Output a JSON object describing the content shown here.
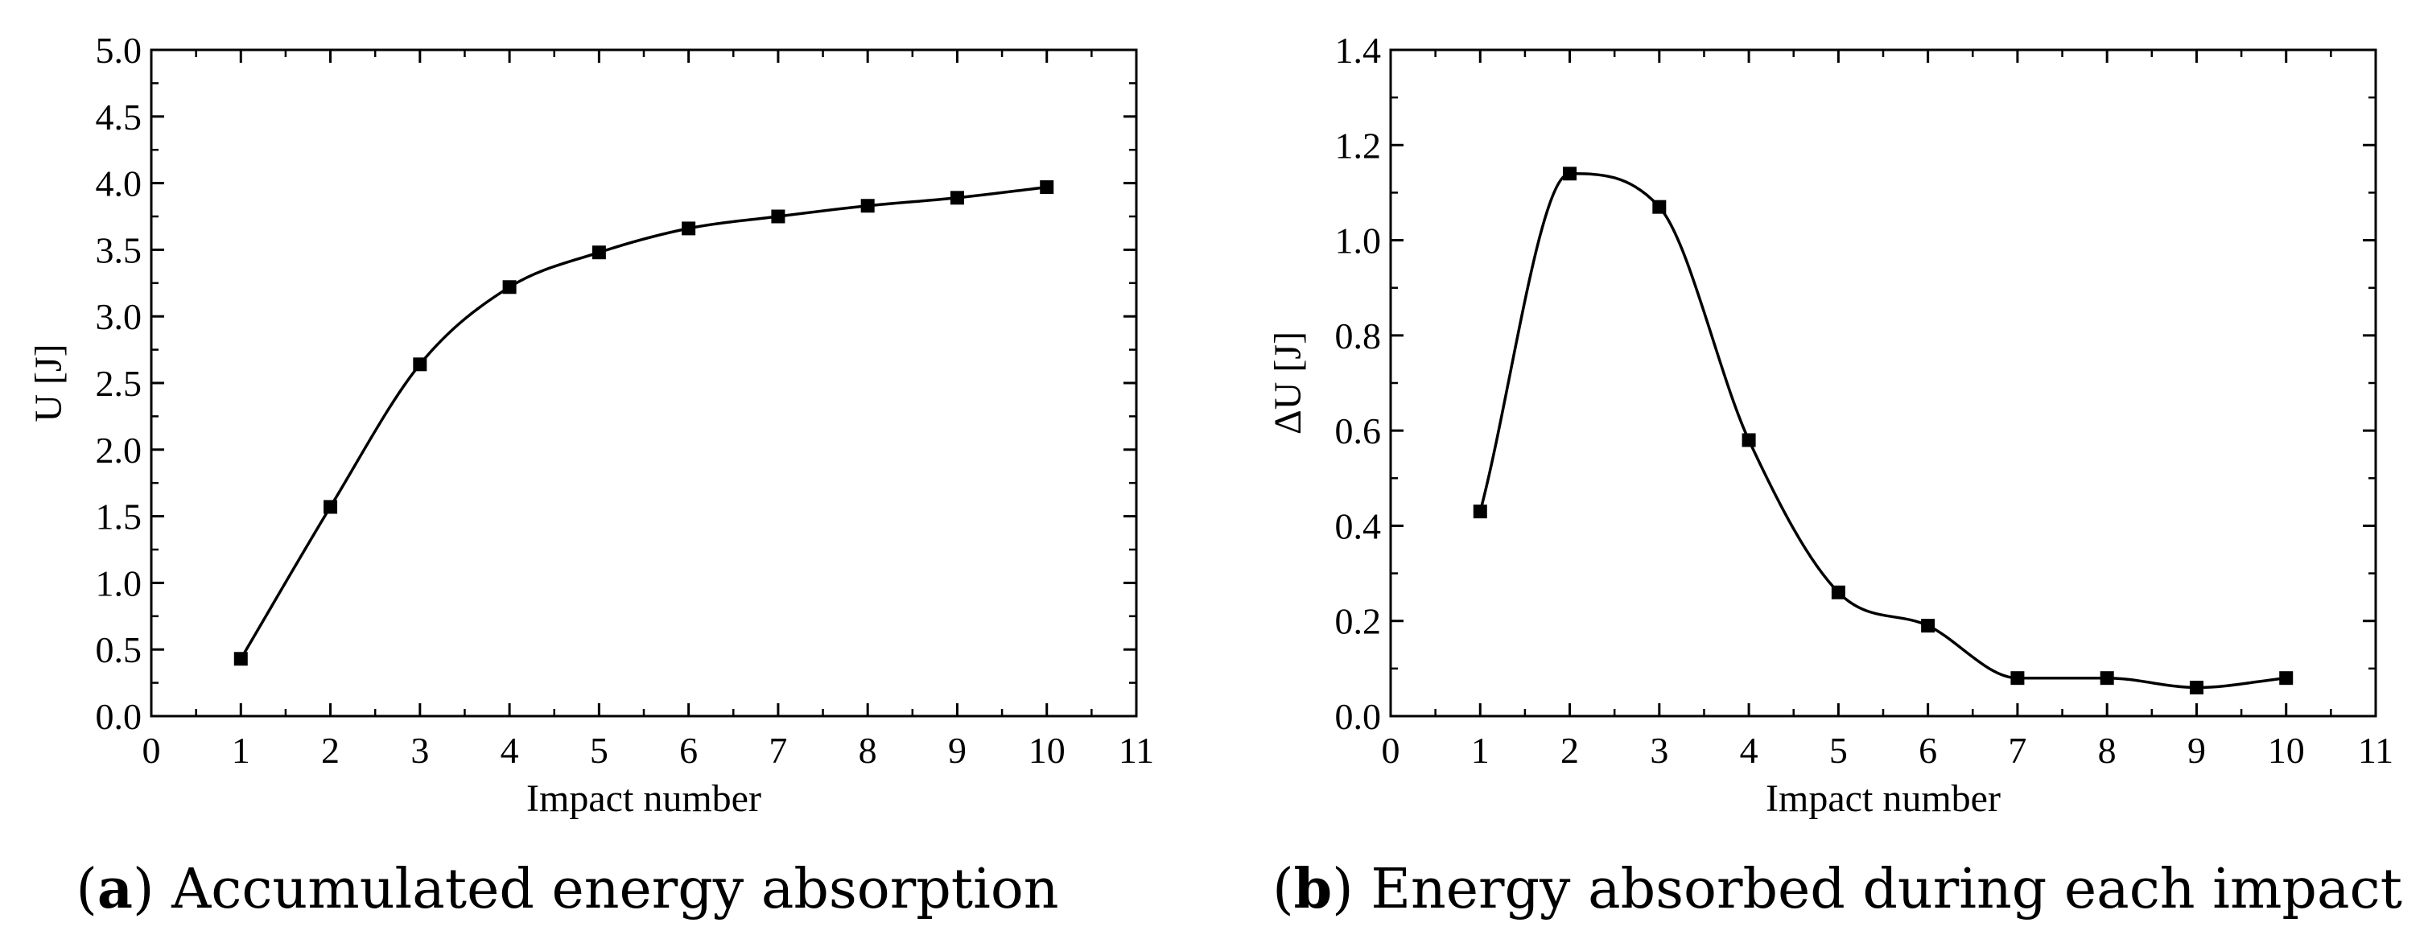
{
  "chart_data": [
    {
      "type": "line",
      "subplot_label": "a",
      "caption": "Accumulated energy absorption",
      "xlabel": "Impact number",
      "ylabel": "U [J]",
      "xlim": [
        0,
        11
      ],
      "ylim": [
        0,
        5.0
      ],
      "xticks": [
        "0",
        "1",
        "2",
        "3",
        "4",
        "5",
        "6",
        "7",
        "8",
        "9",
        "10",
        "11"
      ],
      "yticks": [
        "0.0",
        "0.5",
        "1.0",
        "1.5",
        "2.0",
        "2.5",
        "3.0",
        "3.5",
        "4.0",
        "4.5",
        "5.0"
      ],
      "grid": false,
      "marker": "square",
      "smooth": true,
      "series": [
        {
          "name": "U",
          "x": [
            1,
            2,
            3,
            4,
            5,
            6,
            7,
            8,
            9,
            10
          ],
          "values": [
            0.43,
            1.57,
            2.64,
            3.22,
            3.48,
            3.66,
            3.75,
            3.83,
            3.89,
            3.97
          ]
        }
      ]
    },
    {
      "type": "line",
      "subplot_label": "b",
      "caption": "Energy absorbed during each impact",
      "xlabel": "Impact number",
      "ylabel": "ΔU [J]",
      "xlim": [
        0,
        11
      ],
      "ylim": [
        0,
        1.4
      ],
      "xticks": [
        "0",
        "1",
        "2",
        "3",
        "4",
        "5",
        "6",
        "7",
        "8",
        "9",
        "10",
        "11"
      ],
      "yticks": [
        "0.0",
        "0.2",
        "0.4",
        "0.6",
        "0.8",
        "1.0",
        "1.2",
        "1.4"
      ],
      "grid": false,
      "marker": "square",
      "smooth": true,
      "series": [
        {
          "name": "ΔU",
          "x": [
            1,
            2,
            3,
            4,
            5,
            6,
            7,
            8,
            9,
            10
          ],
          "values": [
            0.43,
            1.14,
            1.07,
            0.58,
            0.26,
            0.19,
            0.08,
            0.08,
            0.06,
            0.08
          ]
        }
      ]
    }
  ]
}
